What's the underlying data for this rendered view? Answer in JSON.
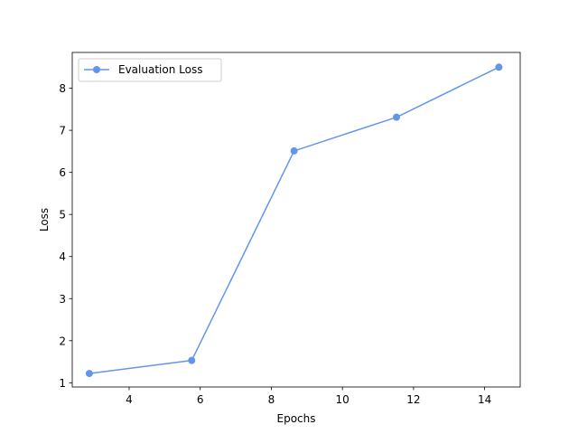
{
  "chart_data": {
    "type": "line",
    "title": "",
    "xlabel": "Epochs",
    "ylabel": "Loss",
    "xlim": [
      2.4,
      15.0
    ],
    "ylim": [
      0.9,
      8.85
    ],
    "xticks": [
      4,
      6,
      8,
      10,
      12,
      14
    ],
    "yticks": [
      1,
      2,
      3,
      4,
      5,
      6,
      7,
      8
    ],
    "grid": false,
    "legend_position": "top-left",
    "series": [
      {
        "name": "Evaluation Loss",
        "color": "#6495ed",
        "marker": "circle",
        "x": [
          2.88,
          5.76,
          8.64,
          11.52,
          14.4
        ],
        "y": [
          1.22,
          1.53,
          6.51,
          7.31,
          8.5
        ]
      }
    ]
  }
}
